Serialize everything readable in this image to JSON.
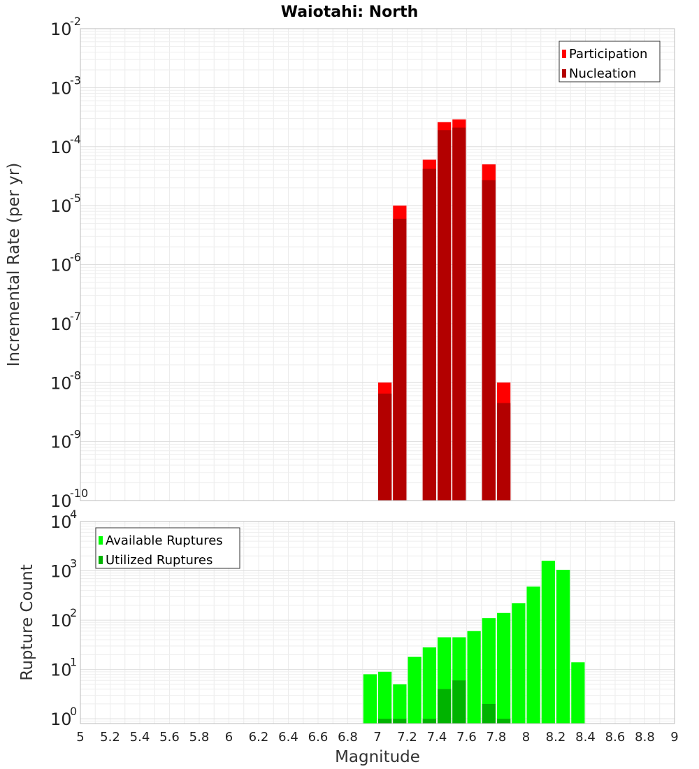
{
  "chart_data": {
    "type": "bar",
    "title": "Waiotahi: North",
    "xlabel": "Magnitude",
    "xlim": [
      5,
      9
    ],
    "x_ticks": [
      "5",
      "5.2",
      "5.4",
      "5.6",
      "5.8",
      "6",
      "6.2",
      "6.4",
      "6.6",
      "6.8",
      "7",
      "7.2",
      "7.4",
      "7.6",
      "7.8",
      "8",
      "8.2",
      "8.4",
      "8.6",
      "8.8",
      "9"
    ],
    "bin_width": 0.1,
    "panels": [
      {
        "id": "rate",
        "ylabel": "Incremental Rate (per yr)",
        "yscale": "log",
        "ylim": [
          1e-10,
          0.01
        ],
        "y_ticks": [
          {
            "base": "10",
            "exp": "-10"
          },
          {
            "base": "10",
            "exp": "-9"
          },
          {
            "base": "10",
            "exp": "-8"
          },
          {
            "base": "10",
            "exp": "-7"
          },
          {
            "base": "10",
            "exp": "-6"
          },
          {
            "base": "10",
            "exp": "-5"
          },
          {
            "base": "10",
            "exp": "-4"
          },
          {
            "base": "10",
            "exp": "-3"
          },
          {
            "base": "10",
            "exp": "-2"
          }
        ],
        "legend": {
          "position": "top-right"
        },
        "series": [
          {
            "name": "Participation",
            "color": "#ff0000",
            "x": [
              7.05,
              7.15,
              7.35,
              7.45,
              7.55,
              7.75,
              7.85
            ],
            "values": [
              1e-08,
              1e-05,
              6e-05,
              0.00026,
              0.00029,
              5e-05,
              1e-08
            ]
          },
          {
            "name": "Nucleation",
            "color": "#b30000",
            "x": [
              7.05,
              7.15,
              7.35,
              7.45,
              7.55,
              7.75,
              7.85
            ],
            "values": [
              6.5e-09,
              6e-06,
              4.2e-05,
              0.00019,
              0.00021,
              2.7e-05,
              4.5e-09
            ]
          }
        ]
      },
      {
        "id": "count",
        "ylabel": "Rupture Count",
        "yscale": "log",
        "ylim": [
          0.8,
          10000.0
        ],
        "y_ticks": [
          {
            "base": "10",
            "exp": "0"
          },
          {
            "base": "10",
            "exp": "1"
          },
          {
            "base": "10",
            "exp": "2"
          },
          {
            "base": "10",
            "exp": "3"
          },
          {
            "base": "10",
            "exp": "4"
          }
        ],
        "legend": {
          "position": "top-left"
        },
        "series": [
          {
            "name": "Available Ruptures",
            "color": "#00ff00",
            "x": [
              6.95,
              7.05,
              7.15,
              7.25,
              7.35,
              7.45,
              7.55,
              7.65,
              7.75,
              7.85,
              7.95,
              8.05,
              8.15,
              8.25,
              8.35
            ],
            "values": [
              8,
              9,
              5,
              18,
              28,
              45,
              45,
              60,
              110,
              140,
              220,
              480,
              1600,
              1050,
              14
            ]
          },
          {
            "name": "Utilized Ruptures",
            "color": "#00b300",
            "x": [
              7.05,
              7.15,
              7.35,
              7.45,
              7.55,
              7.75,
              7.85
            ],
            "values": [
              1,
              1,
              1,
              4,
              6,
              2,
              1
            ]
          }
        ]
      }
    ]
  }
}
